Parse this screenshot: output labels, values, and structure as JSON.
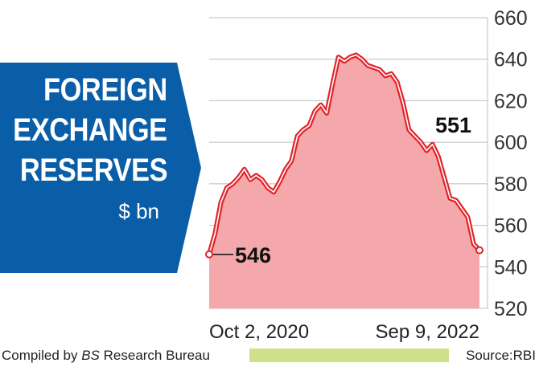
{
  "title_lines": [
    "FOREIGN",
    "EXCHANGE",
    "RESERVES"
  ],
  "unit": "$ bn",
  "footer": {
    "compiled_prefix": "Compiled by ",
    "compiled_italic": "BS",
    "compiled_suffix": " Research Bureau",
    "source": "Source:RBI"
  },
  "colors": {
    "banner": "#0a5ea8",
    "line": "#e0242a",
    "fill": "#f5a8ab",
    "grid": "#bdbdbd",
    "footer_bar": "#cfe08b"
  },
  "chart_data": {
    "type": "area",
    "title": "FOREIGN EXCHANGE RESERVES",
    "ylabel": "$ bn",
    "ylim": [
      520,
      660
    ],
    "yticks": [
      520,
      540,
      560,
      580,
      600,
      620,
      640,
      660
    ],
    "xtick_labels": [
      "Oct 2, 2020",
      "Sep 9, 2022"
    ],
    "grid": true,
    "annotations": [
      {
        "text": "546",
        "at": "start"
      },
      {
        "text": "551",
        "at": "near end"
      }
    ],
    "series": [
      {
        "values": [
          546,
          556,
          571,
          578,
          580,
          583,
          587,
          582,
          584,
          582,
          578,
          576,
          581,
          587,
          591,
          603,
          606,
          608,
          615,
          618,
          614,
          628,
          641,
          639,
          641,
          642,
          640,
          637,
          636,
          635,
          632,
          633,
          629,
          619,
          606,
          603,
          600,
          596,
          599,
          593,
          583,
          573,
          572,
          568,
          564,
          551,
          548
        ]
      }
    ]
  }
}
